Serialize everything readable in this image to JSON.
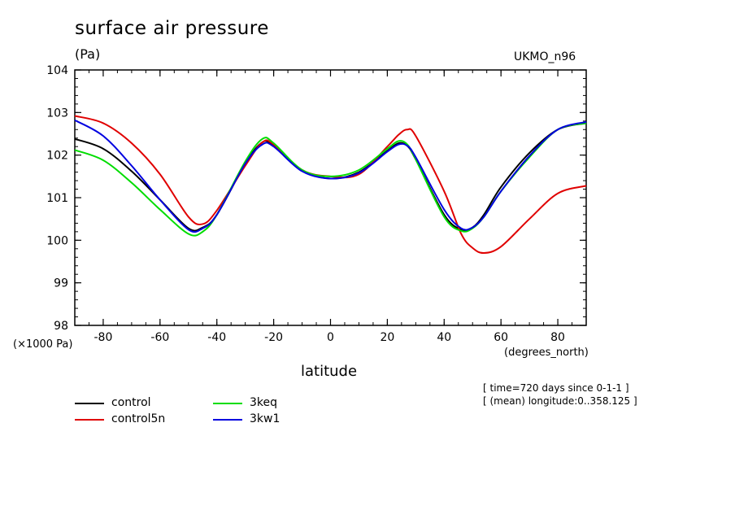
{
  "page": {
    "title": "surface air pressure",
    "units": "(Pa)",
    "model": "UKMO_n96",
    "y_scale_label": "(×1000 Pa)",
    "x_units": "(degrees_north)",
    "x_axis_label": "latitude",
    "meta_time": "[ time=720 days since 0-1-1 ]",
    "meta_lon": "[ (mean) longitude:0..358.125 ]"
  },
  "chart_data": {
    "type": "line",
    "title": "surface air pressure",
    "xlabel": "latitude",
    "ylabel": "(Pa)",
    "xlim": [
      -90,
      90
    ],
    "ylim": [
      98,
      104
    ],
    "x_ticks": [
      -80,
      -60,
      -40,
      -20,
      0,
      20,
      40,
      60,
      80
    ],
    "x_tick_labels": [
      "-80",
      "-60",
      "-40",
      "-20",
      "0",
      "20",
      "40",
      "60",
      "80"
    ],
    "y_ticks": [
      98,
      99,
      100,
      101,
      102,
      103,
      104
    ],
    "y_tick_labels": [
      "98",
      "99",
      "100",
      "101",
      "102",
      "103",
      "104"
    ],
    "grid": false,
    "legend_position": "bottom-left",
    "x": [
      -90,
      -80,
      -70,
      -60,
      -50,
      -45,
      -40,
      -30,
      -24,
      -20,
      -10,
      0,
      10,
      20,
      24,
      27,
      30,
      40,
      46,
      50,
      54,
      60,
      70,
      80,
      90
    ],
    "series": [
      {
        "name": "control",
        "color": "#000000",
        "values": [
          102.38,
          102.15,
          101.62,
          100.95,
          100.28,
          100.3,
          100.6,
          101.8,
          102.3,
          102.22,
          101.65,
          101.45,
          101.6,
          102.1,
          102.28,
          102.22,
          101.9,
          100.6,
          100.25,
          100.3,
          100.6,
          101.25,
          102.05,
          102.6,
          102.75
        ]
      },
      {
        "name": "control5n",
        "color": "#e00000",
        "values": [
          102.92,
          102.75,
          102.28,
          101.55,
          100.55,
          100.38,
          100.7,
          101.75,
          102.3,
          102.25,
          101.65,
          101.5,
          101.55,
          102.2,
          102.48,
          102.6,
          102.45,
          101.15,
          100.15,
          99.82,
          99.7,
          99.85,
          100.5,
          101.1,
          101.28
        ]
      },
      {
        "name": "3keq",
        "color": "#00dd00",
        "values": [
          102.12,
          101.88,
          101.35,
          100.72,
          100.15,
          100.2,
          100.6,
          101.85,
          102.38,
          102.28,
          101.65,
          101.5,
          101.65,
          102.15,
          102.33,
          102.25,
          101.9,
          100.55,
          100.22,
          100.28,
          100.55,
          101.15,
          101.95,
          102.6,
          102.75
        ]
      },
      {
        "name": "3kw1",
        "color": "#0000e0",
        "values": [
          102.82,
          102.45,
          101.75,
          100.95,
          100.25,
          100.28,
          100.6,
          101.8,
          102.25,
          102.2,
          101.62,
          101.45,
          101.58,
          102.08,
          102.25,
          102.22,
          101.95,
          100.72,
          100.28,
          100.3,
          100.55,
          101.15,
          101.98,
          102.6,
          102.78
        ]
      }
    ]
  }
}
